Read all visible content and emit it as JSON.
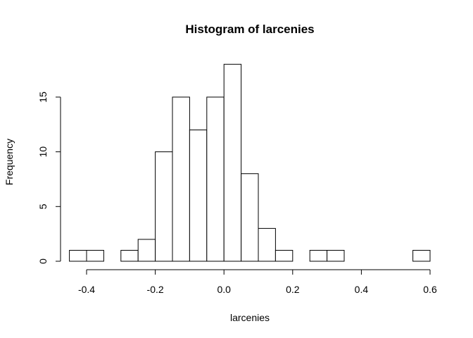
{
  "chart_data": {
    "type": "bar",
    "title": "Histogram of larcenies",
    "xlabel": "larcenies",
    "ylabel": "Frequency",
    "bin_width": 0.05,
    "bins": [
      {
        "start": -0.45,
        "end": -0.4,
        "count": 1
      },
      {
        "start": -0.4,
        "end": -0.35,
        "count": 1
      },
      {
        "start": -0.35,
        "end": -0.3,
        "count": 0
      },
      {
        "start": -0.3,
        "end": -0.25,
        "count": 1
      },
      {
        "start": -0.25,
        "end": -0.2,
        "count": 2
      },
      {
        "start": -0.2,
        "end": -0.15,
        "count": 10
      },
      {
        "start": -0.15,
        "end": -0.1,
        "count": 15
      },
      {
        "start": -0.1,
        "end": -0.05,
        "count": 12
      },
      {
        "start": -0.05,
        "end": 0.0,
        "count": 15
      },
      {
        "start": 0.0,
        "end": 0.05,
        "count": 18
      },
      {
        "start": 0.05,
        "end": 0.1,
        "count": 8
      },
      {
        "start": 0.1,
        "end": 0.15,
        "count": 3
      },
      {
        "start": 0.15,
        "end": 0.2,
        "count": 1
      },
      {
        "start": 0.2,
        "end": 0.25,
        "count": 0
      },
      {
        "start": 0.25,
        "end": 0.3,
        "count": 1
      },
      {
        "start": 0.3,
        "end": 0.35,
        "count": 1
      },
      {
        "start": 0.35,
        "end": 0.4,
        "count": 0
      },
      {
        "start": 0.4,
        "end": 0.45,
        "count": 0
      },
      {
        "start": 0.45,
        "end": 0.5,
        "count": 0
      },
      {
        "start": 0.5,
        "end": 0.55,
        "count": 0
      },
      {
        "start": 0.55,
        "end": 0.6,
        "count": 1
      }
    ],
    "xlim": [
      -0.45,
      0.6
    ],
    "ylim": [
      0,
      18
    ],
    "x_ticks": [
      -0.4,
      -0.2,
      0.0,
      0.2,
      0.4,
      0.6
    ],
    "x_tick_labels": [
      "-0.4",
      "-0.2",
      "0.0",
      "0.2",
      "0.4",
      "0.6"
    ],
    "y_ticks": [
      0,
      5,
      10,
      15
    ],
    "y_tick_labels": [
      "0",
      "5",
      "10",
      "15"
    ],
    "grid": false,
    "colors": {
      "bar_fill": "#ffffff",
      "bar_stroke": "#000000"
    }
  }
}
